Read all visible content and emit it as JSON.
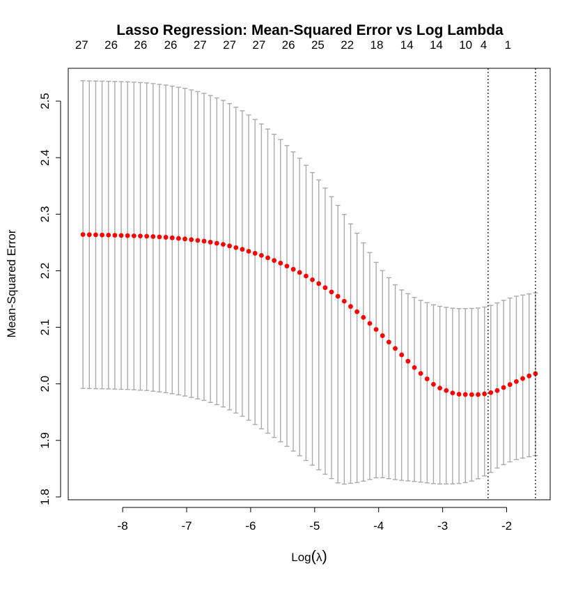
{
  "chart_data": {
    "type": "scatter",
    "title": "Lasso Regression: Mean-Squared Error vs Log Lambda",
    "xlabel_prefix": "Log",
    "xlabel_symbol": "λ",
    "ylabel": "Mean-Squared Error",
    "xlim": [
      -8.85,
      -1.32
    ],
    "ylim": [
      1.795,
      2.558
    ],
    "x_ticks": [
      -8,
      -7,
      -6,
      -5,
      -4,
      -3,
      -2
    ],
    "x_tick_labels": [
      "-8",
      "-7",
      "-6",
      "-5",
      "-4",
      "-3",
      "-2"
    ],
    "y_ticks": [
      1.8,
      1.9,
      2.0,
      2.1,
      2.2,
      2.3,
      2.4,
      2.5
    ],
    "y_tick_labels": [
      "1.8",
      "1.9",
      "2.0",
      "2.1",
      "2.2",
      "2.3",
      "2.4",
      "2.5"
    ],
    "top_axis": {
      "x": [
        -8.64,
        -8.18,
        -7.72,
        -7.25,
        -6.79,
        -6.33,
        -5.87,
        -5.41,
        -4.95,
        -4.49,
        -4.03,
        -3.56,
        -3.1,
        -2.64,
        -2.36,
        -1.98
      ],
      "labels": [
        "27",
        "26",
        "26",
        "26",
        "27",
        "27",
        "27",
        "26",
        "25",
        "22",
        "18",
        "14",
        "14",
        "10",
        "4",
        "1"
      ]
    },
    "vlines": [
      -2.29,
      -1.55
    ],
    "colors": {
      "points": "#ff0000",
      "error_bars": "#aaaaaa",
      "vlines": "#000000",
      "frame": "#000000"
    },
    "series": [
      {
        "log_lambda": [
          -8.62,
          -8.2,
          -7.9,
          -7.6,
          -7.3,
          -7.0,
          -6.7,
          -6.4,
          -6.1,
          -5.8,
          -5.5,
          -5.2,
          -4.9,
          -4.6,
          -4.3,
          -4.0,
          -3.7,
          -3.4,
          -3.1,
          -2.8,
          -2.6,
          -2.45,
          -2.29,
          -2.15,
          -2.0,
          -1.85,
          -1.7,
          -1.55
        ],
        "mse": [
          2.264,
          2.263,
          2.262,
          2.261,
          2.259,
          2.256,
          2.252,
          2.246,
          2.237,
          2.226,
          2.212,
          2.195,
          2.175,
          2.152,
          2.124,
          2.092,
          2.058,
          2.024,
          1.995,
          1.982,
          1.981,
          1.981,
          1.983,
          1.988,
          1.996,
          2.004,
          2.012,
          2.018
        ],
        "upper": [
          2.536,
          2.535,
          2.534,
          2.532,
          2.528,
          2.522,
          2.513,
          2.5,
          2.481,
          2.457,
          2.429,
          2.395,
          2.356,
          2.31,
          2.26,
          2.208,
          2.17,
          2.15,
          2.138,
          2.133,
          2.133,
          2.134,
          2.137,
          2.143,
          2.15,
          2.155,
          2.158,
          2.161
        ],
        "lower": [
          1.992,
          1.991,
          1.99,
          1.988,
          1.984,
          1.978,
          1.97,
          1.958,
          1.941,
          1.918,
          1.895,
          1.87,
          1.845,
          1.822,
          1.826,
          1.835,
          1.83,
          1.827,
          1.823,
          1.823,
          1.826,
          1.832,
          1.84,
          1.851,
          1.86,
          1.866,
          1.87,
          1.873
        ]
      }
    ]
  }
}
